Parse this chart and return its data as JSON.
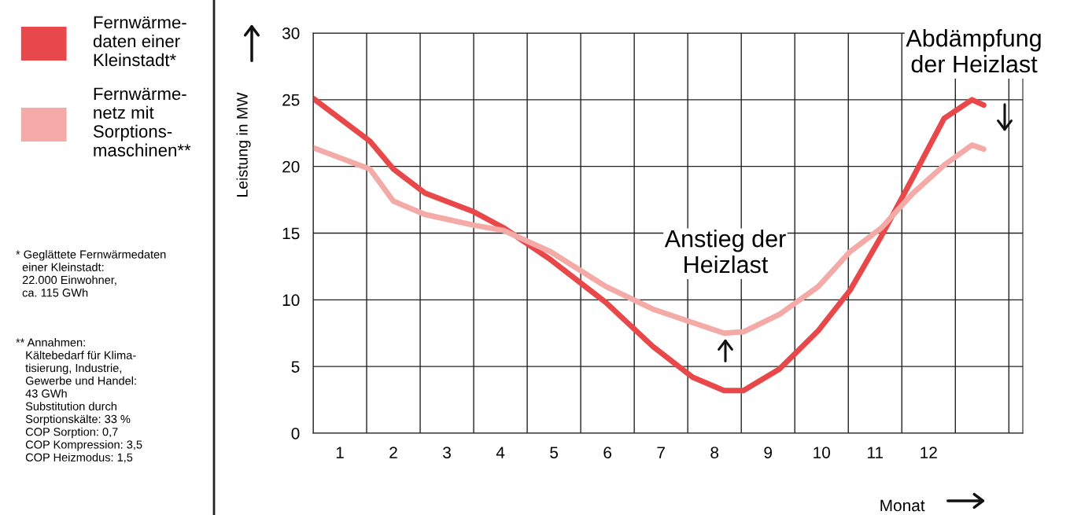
{
  "chart_data": {
    "type": "line",
    "x": [
      0.5,
      1.56,
      2.0,
      2.59,
      3.5,
      4.06,
      4.94,
      5.97,
      6.85,
      7.59,
      8.18,
      8.54,
      9.21,
      9.94,
      10.53,
      11.12,
      11.71,
      12.29,
      12.81,
      13.03
    ],
    "series": [
      {
        "name": "Fernwärme-\ndaten einer\nKleinstadt*",
        "color": "#e8484a",
        "values": [
          25.1,
          21.9,
          19.8,
          18.0,
          16.6,
          15.4,
          13.0,
          9.8,
          6.5,
          4.2,
          3.2,
          3.2,
          4.8,
          7.7,
          10.7,
          14.8,
          19.2,
          23.6,
          25.0,
          24.6
        ]
      },
      {
        "name": "Fernwärme-\nnetz mit\nSorptions-\nmaschinen**",
        "color": "#f4aaa6",
        "values": [
          21.4,
          19.8,
          17.4,
          16.4,
          15.6,
          15.2,
          13.6,
          11.0,
          9.3,
          8.3,
          7.5,
          7.6,
          8.9,
          11.0,
          13.6,
          15.4,
          18.0,
          20.1,
          21.6,
          21.3
        ]
      }
    ],
    "xlabel": "Monat",
    "ylabel": "Leistung in MW",
    "xlim": [
      0.5,
      13.76
    ],
    "ylim": [
      0,
      30
    ],
    "xticks": [
      1,
      2,
      3,
      4,
      5,
      6,
      7,
      8,
      9,
      10,
      11,
      12,
      {
        "value": 0.5,
        "label": null
      },
      {
        "value": 1.5,
        "label": null
      },
      {
        "value": 2.5,
        "label": null
      },
      {
        "value": 3.5,
        "label": null
      },
      {
        "value": 4.5,
        "label": null
      },
      {
        "value": 5.5,
        "label": null
      },
      {
        "value": 6.5,
        "label": null
      },
      {
        "value": 7.5,
        "label": null
      },
      {
        "value": 8.5,
        "label": null
      },
      {
        "value": 9.5,
        "label": null
      },
      {
        "value": 10.5,
        "label": null
      },
      {
        "value": 11.5,
        "label": null
      },
      {
        "value": 12.5,
        "label": null
      },
      {
        "value": 13.5,
        "label": null
      }
    ],
    "yticks": [
      0,
      5,
      10,
      15,
      20,
      25,
      30
    ],
    "grid": true,
    "legend": "left",
    "marker": "none",
    "line_style": "solid",
    "annotations": [
      "Anstieg der\nHeizlast",
      "Abdämpfung\nder Heizlast",
      "* Geglättete Fernwärmedaten\n  einer Kleinstadt:\n  22.000 Einwohner,\n  ca. 115 GWh",
      "** Annahmen:\n   Kältebedarf für Klima-\n   tisierung, Industrie,\n   Gewerbe und Handel:\n   43 GWh\n   Substitution durch\n   Sorptionskälte: 33 %\n   COP Sorption: 0,7\n   COP Kompression: 3,5\n   COP Heizmodus: 1,5"
    ]
  }
}
